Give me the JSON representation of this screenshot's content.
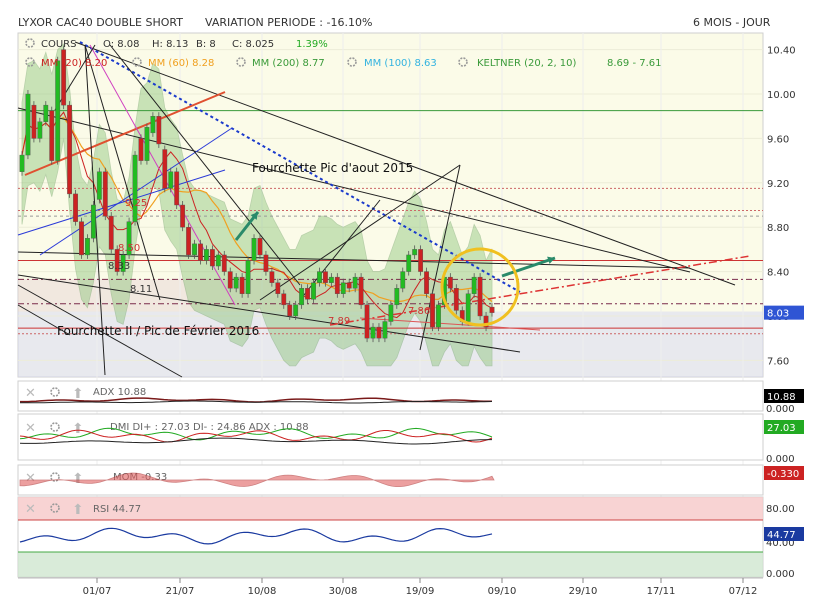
{
  "header": {
    "instrument": "LYXOR CAC40 DOUBLE SHORT",
    "variation": "VARIATION PERIODE : -16.10%",
    "period": "6 MOIS - JOUR"
  },
  "main_legend": {
    "cours_label": "COURS",
    "open": "O: 8.08",
    "high": "H: 8.13",
    "low": "B: 8",
    "close": "C: 8.025",
    "change": "1.39%",
    "mm20": "MM (20) 8.20",
    "mm60": "MM (60) 8.28",
    "mm200": "MM (200) 8.77",
    "mm100": "MM (100) 8.63",
    "keltner": "KELTNER (20, 2, 10)",
    "keltner_values": "8.69 - 7.61"
  },
  "annotations": {
    "fork_aug": "Fourchette Pic d'aout 2015",
    "fork_feb": "Fourchette II / Pic de Février 2016",
    "lvl_925": "9.25",
    "lvl_850": "8.50",
    "lvl_833": "8.33",
    "lvl_811": "8.11",
    "lvl_789": "7.89",
    "lvl_786": "7.86"
  },
  "price_axis": {
    "ticks": [
      "10.40",
      "10.00",
      "9.60",
      "9.20",
      "8.80",
      "8.40",
      "8.00",
      "7.60"
    ],
    "current": "8.03"
  },
  "dates": [
    "01/07",
    "21/07",
    "10/08",
    "30/08",
    "19/09",
    "09/10",
    "29/10",
    "17/11",
    "07/12"
  ],
  "indicators": {
    "adx": {
      "label": "ADX",
      "value": "10.88",
      "zero": "0.000"
    },
    "dmi": {
      "label": "DMI DI+ : 27.03 DI- : 24.86 ADX : 10.88",
      "value": "27.03",
      "zero": "0.000"
    },
    "mom": {
      "label": "MOM",
      "value": "-0.33",
      "badge": "-0.330"
    },
    "rsi": {
      "label": "RSI",
      "value": "44.77",
      "upper": "80.00",
      "mid": "40.00",
      "zero": "0.000"
    }
  },
  "colors": {
    "up": "#22bb22",
    "down": "#cc2222",
    "mm20": "#cc2222",
    "mm60": "#f0a020",
    "mm200": "#3a9a3a",
    "mm100": "#33b3e0",
    "keltner_fill": "#8cc47a",
    "price_badge": "#2f55d4",
    "dmi_badge": "#22aa22",
    "mom_badge": "#cc2222",
    "adx_badge": "#000000",
    "rsi_badge": "#1a3aa0"
  },
  "chart_data": {
    "type": "candlestick",
    "title": "LYXOR CAC40 DOUBLE SHORT",
    "ylim": [
      7.45,
      10.55
    ],
    "x_range": [
      "2016-06-15",
      "2016-12-10"
    ],
    "current_price": 8.03,
    "moving_averages": {
      "MM20": 8.2,
      "MM60": 8.28,
      "MM200": 8.77,
      "MM100": 8.63
    },
    "keltner": {
      "upper": 8.69,
      "lower": 7.61
    },
    "levels": [
      9.25,
      8.5,
      8.33,
      8.11,
      7.89,
      7.86
    ],
    "candles": [
      {
        "o": 9.3,
        "c": 9.45
      },
      {
        "o": 9.45,
        "c": 10.0
      },
      {
        "o": 9.9,
        "c": 9.6
      },
      {
        "o": 9.6,
        "c": 9.75
      },
      {
        "o": 9.75,
        "c": 9.9
      },
      {
        "o": 9.85,
        "c": 9.4
      },
      {
        "o": 9.4,
        "c": 10.3
      },
      {
        "o": 10.4,
        "c": 9.9
      },
      {
        "o": 9.9,
        "c": 9.1
      },
      {
        "o": 9.1,
        "c": 8.85
      },
      {
        "o": 8.85,
        "c": 8.55
      },
      {
        "o": 8.55,
        "c": 8.7
      },
      {
        "o": 8.7,
        "c": 9.0
      },
      {
        "o": 9.05,
        "c": 9.3
      },
      {
        "o": 9.3,
        "c": 8.9
      },
      {
        "o": 8.9,
        "c": 8.6
      },
      {
        "o": 8.6,
        "c": 8.4
      },
      {
        "o": 8.4,
        "c": 8.55
      },
      {
        "o": 8.55,
        "c": 8.85
      },
      {
        "o": 8.85,
        "c": 9.45
      },
      {
        "o": 9.6,
        "c": 9.4
      },
      {
        "o": 9.4,
        "c": 9.7
      },
      {
        "o": 9.65,
        "c": 9.8
      },
      {
        "o": 9.8,
        "c": 9.55
      },
      {
        "o": 9.5,
        "c": 9.15
      },
      {
        "o": 9.15,
        "c": 9.3
      },
      {
        "o": 9.3,
        "c": 9.0
      },
      {
        "o": 9.0,
        "c": 8.8
      },
      {
        "o": 8.8,
        "c": 8.55
      },
      {
        "o": 8.55,
        "c": 8.65
      },
      {
        "o": 8.65,
        "c": 8.5
      },
      {
        "o": 8.5,
        "c": 8.6
      },
      {
        "o": 8.6,
        "c": 8.45
      },
      {
        "o": 8.45,
        "c": 8.55
      },
      {
        "o": 8.55,
        "c": 8.4
      },
      {
        "o": 8.4,
        "c": 8.25
      },
      {
        "o": 8.25,
        "c": 8.35
      },
      {
        "o": 8.35,
        "c": 8.2
      },
      {
        "o": 8.2,
        "c": 8.5
      },
      {
        "o": 8.5,
        "c": 8.7
      },
      {
        "o": 8.7,
        "c": 8.55
      },
      {
        "o": 8.55,
        "c": 8.4
      },
      {
        "o": 8.4,
        "c": 8.3
      },
      {
        "o": 8.3,
        "c": 8.2
      },
      {
        "o": 8.2,
        "c": 8.1
      },
      {
        "o": 8.1,
        "c": 8.0
      },
      {
        "o": 8.0,
        "c": 8.1
      },
      {
        "o": 8.1,
        "c": 8.25
      },
      {
        "o": 8.25,
        "c": 8.15
      },
      {
        "o": 8.15,
        "c": 8.3
      },
      {
        "o": 8.3,
        "c": 8.4
      },
      {
        "o": 8.4,
        "c": 8.3
      },
      {
        "o": 8.3,
        "c": 8.35
      },
      {
        "o": 8.35,
        "c": 8.2
      },
      {
        "o": 8.2,
        "c": 8.3
      },
      {
        "o": 8.3,
        "c": 8.25
      },
      {
        "o": 8.25,
        "c": 8.35
      },
      {
        "o": 8.35,
        "c": 8.1
      },
      {
        "o": 8.1,
        "c": 7.8
      },
      {
        "o": 7.8,
        "c": 7.9
      },
      {
        "o": 7.9,
        "c": 7.8
      },
      {
        "o": 7.8,
        "c": 7.95
      },
      {
        "o": 7.95,
        "c": 8.1
      },
      {
        "o": 8.1,
        "c": 8.25
      },
      {
        "o": 8.25,
        "c": 8.4
      },
      {
        "o": 8.4,
        "c": 8.55
      },
      {
        "o": 8.55,
        "c": 8.6
      },
      {
        "o": 8.6,
        "c": 8.4
      },
      {
        "o": 8.4,
        "c": 8.2
      },
      {
        "o": 8.2,
        "c": 7.9
      },
      {
        "o": 7.9,
        "c": 8.1
      },
      {
        "o": 8.1,
        "c": 8.35
      },
      {
        "o": 8.35,
        "c": 8.25
      },
      {
        "o": 8.25,
        "c": 8.05
      },
      {
        "o": 8.05,
        "c": 7.95
      },
      {
        "o": 7.95,
        "c": 8.2
      },
      {
        "o": 8.2,
        "c": 8.35
      },
      {
        "o": 8.35,
        "c": 8.0
      },
      {
        "o": 8.0,
        "c": 7.9
      },
      {
        "o": 8.08,
        "c": 8.03
      }
    ]
  }
}
